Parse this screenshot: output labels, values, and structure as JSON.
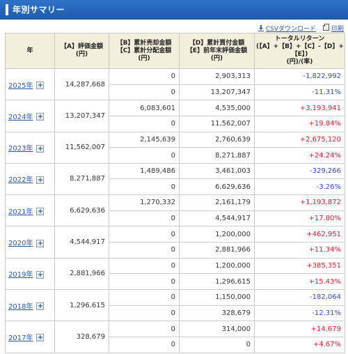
{
  "header": {
    "title": "年別サマリー"
  },
  "tools": {
    "csv_label": "CSVダウンロード",
    "print_label": "印刷"
  },
  "colors": {
    "header_bg": "#2f73c8",
    "positive": "#e0182c",
    "negative": "#3447c9",
    "thead_bg": "#f2efdc"
  },
  "columns": {
    "year": [
      "年"
    ],
    "a": [
      "【A】評価金額",
      "(円)"
    ],
    "bc": [
      "【B】累計売却金額",
      "【C】累計分配金額",
      "(円)"
    ],
    "de": [
      "【D】累計買付金額",
      "【E】前年末評価金額",
      "(円)"
    ],
    "ret": [
      "トータルリターン",
      "(【A】+【B】+【C】-【D】+",
      "【E】)",
      "(円)/(率)"
    ]
  },
  "rows": [
    {
      "year": "2025年",
      "a": "14,287,668",
      "b": "0",
      "c": "0",
      "d": "2,903,313",
      "e": "13,207,347",
      "ret_yen": "-1,822,992",
      "ret_pct": "-11.31%",
      "sign": "neg"
    },
    {
      "year": "2024年",
      "a": "13,207,347",
      "b": "6,083,601",
      "c": "0",
      "d": "4,535,000",
      "e": "11,562,007",
      "ret_yen": "+3,193,941",
      "ret_pct": "+19.84%",
      "sign": "pos"
    },
    {
      "year": "2023年",
      "a": "11,562,007",
      "b": "2,145,639",
      "c": "0",
      "d": "2,760,639",
      "e": "8,271,887",
      "ret_yen": "+2,675,120",
      "ret_pct": "+24.24%",
      "sign": "pos"
    },
    {
      "year": "2022年",
      "a": "8,271,887",
      "b": "1,489,486",
      "c": "0",
      "d": "3,461,003",
      "e": "6,629,636",
      "ret_yen": "-329,266",
      "ret_pct": "-3.26%",
      "sign": "neg"
    },
    {
      "year": "2021年",
      "a": "6,629,636",
      "b": "1,270,332",
      "c": "0",
      "d": "2,161,179",
      "e": "4,544,917",
      "ret_yen": "+1,193,872",
      "ret_pct": "+17.80%",
      "sign": "pos"
    },
    {
      "year": "2020年",
      "a": "4,544,917",
      "b": "0",
      "c": "0",
      "d": "1,200,000",
      "e": "2,881,966",
      "ret_yen": "+462,951",
      "ret_pct": "+11.34%",
      "sign": "pos"
    },
    {
      "year": "2019年",
      "a": "2,881,966",
      "b": "0",
      "c": "0",
      "d": "1,200,000",
      "e": "1,296,615",
      "ret_yen": "+385,351",
      "ret_pct": "+15.43%",
      "sign": "pos"
    },
    {
      "year": "2018年",
      "a": "1,296,615",
      "b": "0",
      "c": "0",
      "d": "1,150,000",
      "e": "328,679",
      "ret_yen": "-182,064",
      "ret_pct": "-12.31%",
      "sign": "neg"
    },
    {
      "year": "2017年",
      "a": "328,679",
      "b": "0",
      "c": "0",
      "d": "314,000",
      "e": "0",
      "ret_yen": "+14,679",
      "ret_pct": "+4.67%",
      "sign": "pos"
    }
  ]
}
